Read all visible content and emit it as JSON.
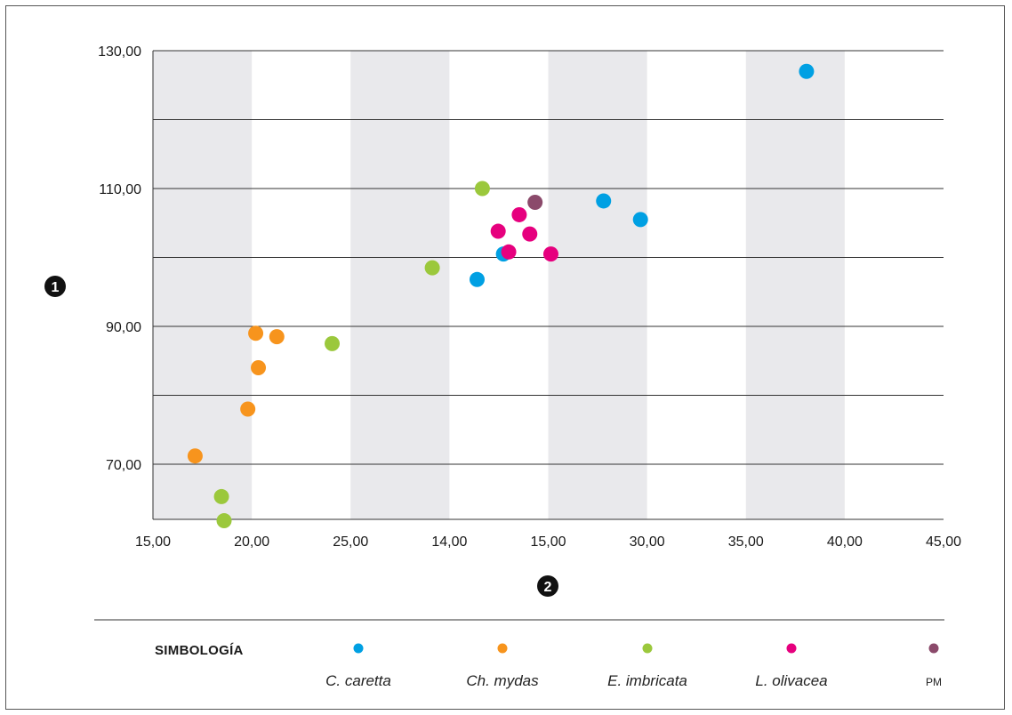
{
  "chart_data": {
    "type": "scatter",
    "x_ticks": [
      "15,00",
      "20,00",
      "25,00",
      "14,00",
      "15,00",
      "30,00",
      "35,00",
      "40,00",
      "45,00"
    ],
    "y_ticks": [
      "70,00",
      "90,00",
      "110,00",
      "130,00"
    ],
    "xlim": [
      15,
      45
    ],
    "ylim": [
      62,
      130
    ],
    "ylabel_badge": "1",
    "xlabel_badge": "2",
    "grid": true,
    "series": [
      {
        "name": "C. caretta",
        "color": "#00a0e3",
        "points": [
          {
            "x": 39.8,
            "y": 127.0
          },
          {
            "x": 32.1,
            "y": 108.2
          },
          {
            "x": 33.5,
            "y": 105.5
          },
          {
            "x": 28.3,
            "y": 100.5
          },
          {
            "x": 27.3,
            "y": 96.8
          }
        ]
      },
      {
        "name": "Ch. mydas",
        "color": "#f7941d",
        "points": [
          {
            "x": 18.9,
            "y": 89.0
          },
          {
            "x": 19.7,
            "y": 88.5
          },
          {
            "x": 19.0,
            "y": 84.0
          },
          {
            "x": 18.6,
            "y": 78.0
          },
          {
            "x": 16.6,
            "y": 71.2
          }
        ]
      },
      {
        "name": "E. imbricata",
        "color": "#9bc83c",
        "points": [
          {
            "x": 27.5,
            "y": 110.0
          },
          {
            "x": 25.6,
            "y": 98.5
          },
          {
            "x": 21.8,
            "y": 87.5
          },
          {
            "x": 17.6,
            "y": 65.3
          },
          {
            "x": 17.7,
            "y": 61.8
          }
        ]
      },
      {
        "name": "L. olivacea",
        "color": "#e6007e",
        "points": [
          {
            "x": 28.9,
            "y": 106.2
          },
          {
            "x": 28.1,
            "y": 103.8
          },
          {
            "x": 29.3,
            "y": 103.4
          },
          {
            "x": 28.5,
            "y": 100.8
          },
          {
            "x": 30.1,
            "y": 100.5
          }
        ]
      },
      {
        "name": "PM",
        "color": "#8b4a6b",
        "points": [
          {
            "x": 29.5,
            "y": 108.0
          }
        ]
      }
    ]
  },
  "legend": {
    "title": "SIMBOLOGÍA",
    "items": [
      {
        "label": "C. caretta",
        "color": "#00a0e3",
        "style": "italic"
      },
      {
        "label": "Ch. mydas",
        "color": "#f7941d",
        "style": "italic"
      },
      {
        "label": "E. imbricata",
        "color": "#9bc83c",
        "style": "italic"
      },
      {
        "label": "L. olivacea",
        "color": "#e6007e",
        "style": "italic"
      },
      {
        "label": "PM",
        "color": "#8b4a6b",
        "style": "small"
      }
    ]
  }
}
